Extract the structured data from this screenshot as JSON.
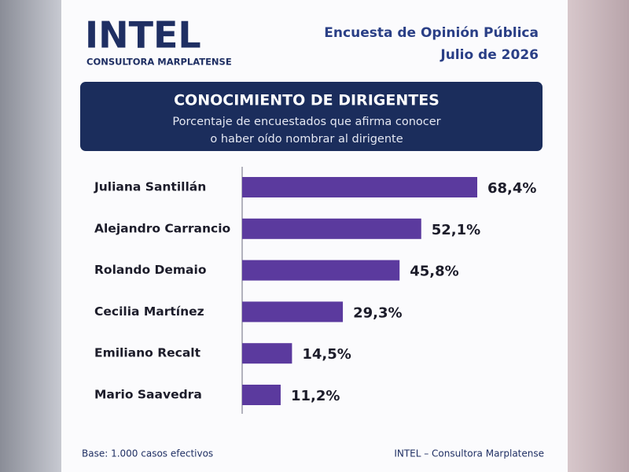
{
  "header": {
    "logo": "INTEL",
    "logo_subtitle": "CONSULTORA MARPLATENSE",
    "survey": "Encuesta de Opinión Pública",
    "date": "Julio de 2026"
  },
  "chart_data": {
    "type": "bar",
    "orientation": "horizontal",
    "title": "CONOCIMIENTO DE DIRIGENTES",
    "subtitle": [
      "Porcentaje de encuestados que afirma conocer",
      "o haber oído nombrar al dirigente"
    ],
    "categories": [
      "Juliana Santillán",
      "Alejandro Carrancio",
      "Rolando Demaio",
      "Cecilia Martínez",
      "Emiliano Recalt",
      "Mario Saavedra"
    ],
    "values": [
      68.4,
      52.1,
      45.8,
      29.3,
      14.5,
      11.2
    ],
    "value_labels": [
      "68,4%",
      "52,1%",
      "45,8%",
      "29,3%",
      "14,5%",
      "11,2%"
    ],
    "color": "#5b3a9e"
  },
  "footer": {
    "base": "Base: 1.000 casos efectivos",
    "source": "INTEL – Consultora Marplatense"
  }
}
